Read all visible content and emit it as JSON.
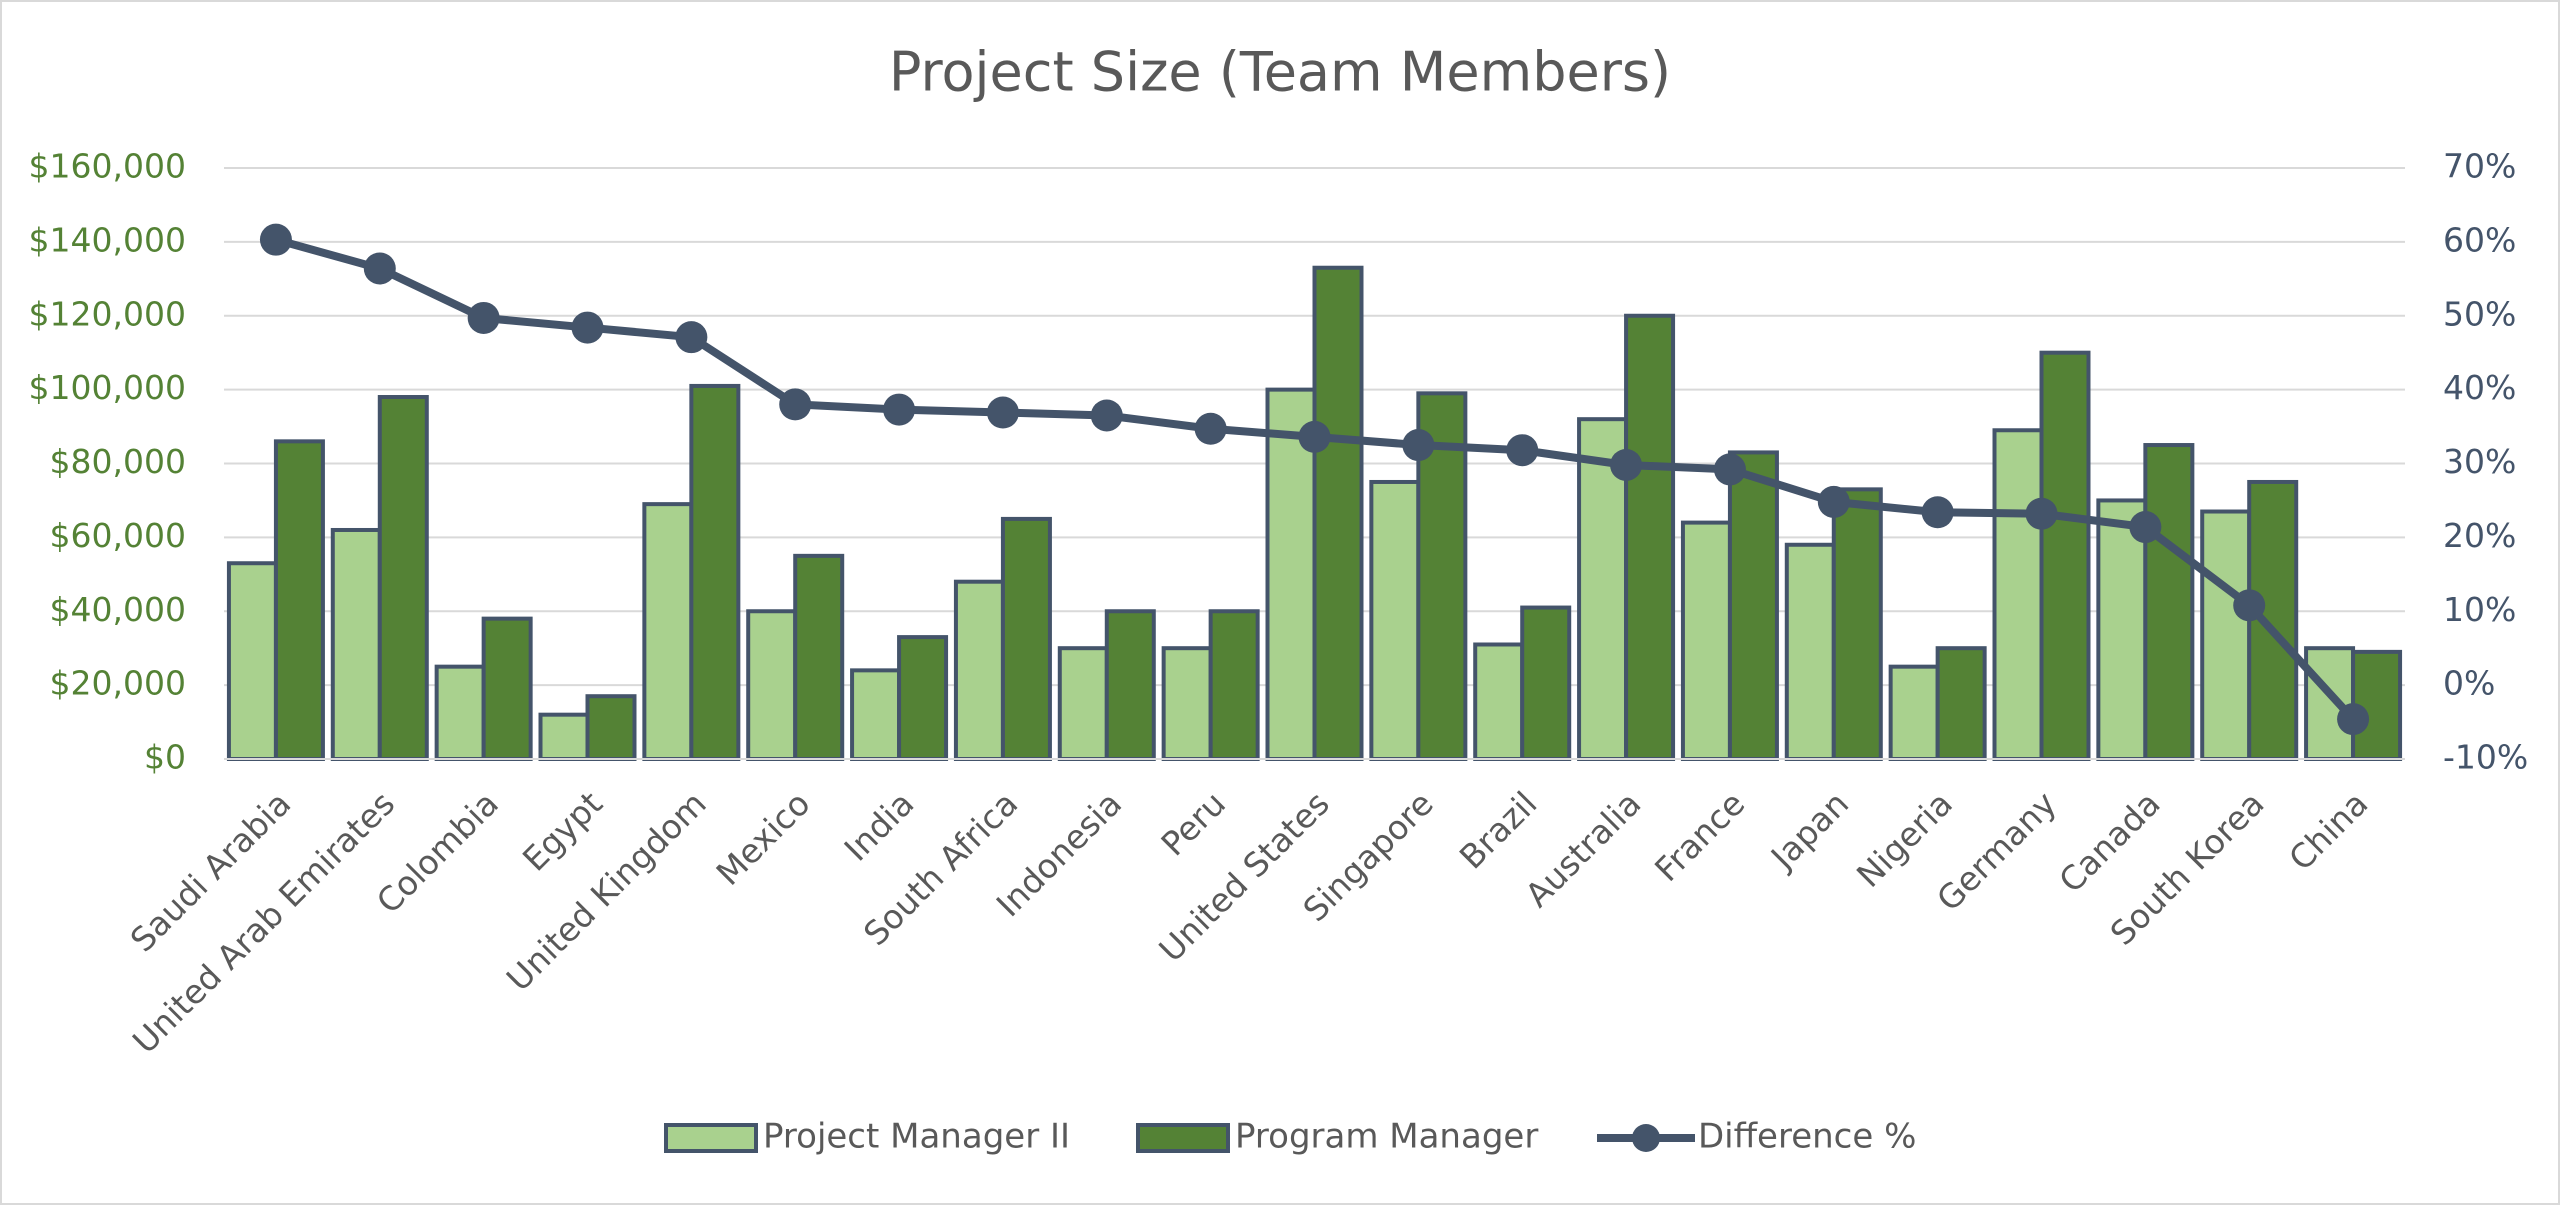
{
  "chart_data": {
    "type": "bar",
    "title": "Project Size (Team Members)",
    "categories": [
      "Saudi Arabia",
      "United Arab Emirates",
      "Colombia",
      "Egypt",
      "United Kingdom",
      "Mexico",
      "India",
      "South Africa",
      "Indonesia",
      "Peru",
      "United States",
      "Singapore",
      "Brazil",
      "Australia",
      "France",
      "Japan",
      "Nigeria",
      "Germany",
      "Canada",
      "South Korea",
      "China"
    ],
    "series": [
      {
        "name": "Project Manager II",
        "type": "bar",
        "color": "#a9d18e",
        "values": [
          53000,
          62000,
          25000,
          12000,
          69000,
          40000,
          24000,
          48000,
          30000,
          30000,
          100000,
          75000,
          31000,
          92000,
          64000,
          58000,
          25000,
          89000,
          70000,
          67000,
          30000
        ]
      },
      {
        "name": "Program Manager",
        "type": "bar",
        "color": "#548235",
        "values": [
          86000,
          98000,
          38000,
          17000,
          101000,
          55000,
          33000,
          65000,
          40000,
          40000,
          133000,
          99000,
          41000,
          120000,
          83000,
          73000,
          30000,
          110000,
          85000,
          75000,
          29000
        ]
      },
      {
        "name": "Difference %",
        "type": "line",
        "axis": "y2",
        "color": "#44546a",
        "values": [
          60.3,
          56.4,
          49.7,
          48.4,
          47.1,
          38.0,
          37.3,
          36.9,
          36.5,
          34.7,
          33.6,
          32.5,
          31.8,
          29.8,
          29.2,
          24.8,
          23.4,
          23.2,
          21.4,
          10.8,
          -4.6
        ]
      }
    ],
    "ylim": [
      0,
      160000
    ],
    "yticks": [
      {
        "value": 0,
        "label": "$0"
      },
      {
        "value": 20000,
        "label": "$20,000"
      },
      {
        "value": 40000,
        "label": "$40,000"
      },
      {
        "value": 60000,
        "label": "$60,000"
      },
      {
        "value": 80000,
        "label": "$80,000"
      },
      {
        "value": 100000,
        "label": "$100,000"
      },
      {
        "value": 120000,
        "label": "$120,000"
      },
      {
        "value": 140000,
        "label": "$140,000"
      },
      {
        "value": 160000,
        "label": "$160,000"
      }
    ],
    "y2lim": [
      -10,
      70
    ],
    "y2ticks": [
      {
        "value": -10,
        "label": "-10%"
      },
      {
        "value": 0,
        "label": "0%"
      },
      {
        "value": 10,
        "label": "10%"
      },
      {
        "value": 20,
        "label": "20%"
      },
      {
        "value": 30,
        "label": "30%"
      },
      {
        "value": 40,
        "label": "40%"
      },
      {
        "value": 50,
        "label": "50%"
      },
      {
        "value": 60,
        "label": "60%"
      },
      {
        "value": 70,
        "label": "70%"
      }
    ],
    "grid": true,
    "legend": "bottom"
  }
}
